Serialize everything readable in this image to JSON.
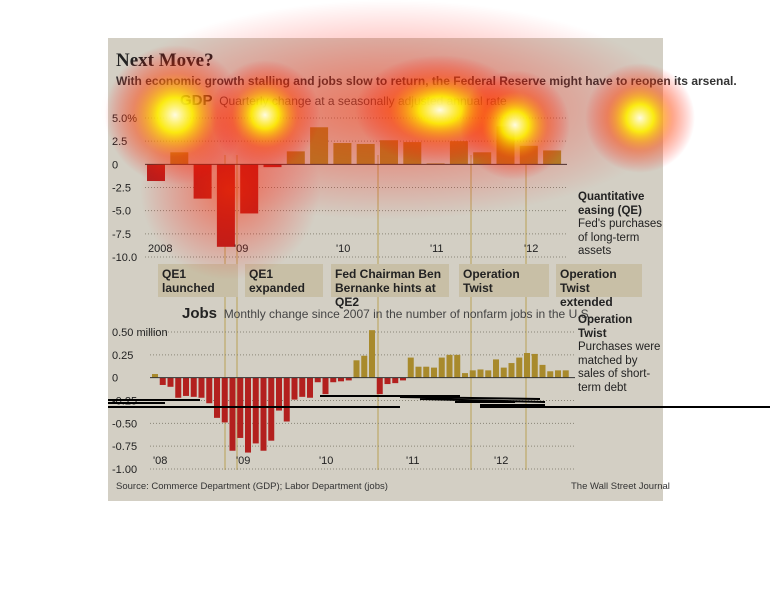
{
  "title": "Next Move?",
  "subtitle": "With economic growth stalling and jobs slow to return, the Federal Reserve might have to reopen its arsenal.",
  "source": "Source: Commerce Department (GDP); Labor Department (jobs)",
  "credit": "The Wall Street Journal",
  "annotations": {
    "qe_title": "Quantitative easing (QE)",
    "qe_text": "Fed's purchases of long-term assets",
    "twist_title": "Operation Twist",
    "twist_text": "Purchases were matched by sales of short-term debt"
  },
  "events": [
    "QE1 launched",
    "QE1 expanded",
    "Fed Chairman Ben Bernanke hints at QE2",
    "Operation Twist",
    "Operation Twist extended"
  ],
  "colors": {
    "negative": "#b3201e",
    "positive": "#a88a2c",
    "background": "#d3cfc4"
  },
  "chart_data": [
    {
      "type": "bar",
      "title": "GDP",
      "subtitle": "Quarterly change at a seasonally adjusted annual rate",
      "ylim": [
        -10,
        5
      ],
      "yticks": [
        "5.0%",
        "2.5",
        "0",
        "-2.5",
        "-5.0",
        "-7.5",
        "-10.0"
      ],
      "xticks": [
        "2008",
        "'09",
        "'10",
        "'11",
        "'12"
      ],
      "categories": [
        "2008Q1",
        "2008Q2",
        "2008Q3",
        "2008Q4",
        "2009Q1",
        "2009Q2",
        "2009Q3",
        "2009Q4",
        "2010Q1",
        "2010Q2",
        "2010Q3",
        "2010Q4",
        "2011Q1",
        "2011Q2",
        "2011Q3",
        "2011Q4",
        "2012Q1",
        "2012Q2"
      ],
      "values": [
        -1.8,
        1.3,
        -3.7,
        -8.9,
        -5.3,
        -0.3,
        1.4,
        4.0,
        2.3,
        2.2,
        2.6,
        2.4,
        0.1,
        2.5,
        1.3,
        4.1,
        2.0,
        1.5
      ]
    },
    {
      "type": "bar",
      "title": "Jobs",
      "subtitle": "Monthly change since 2007 in the number of nonfarm jobs in the U.S.",
      "ylim": [
        -1.0,
        0.5
      ],
      "yticks": [
        "0.50 million",
        "0.25",
        "0",
        "-0.25",
        "-0.50",
        "-0.75",
        "-1.00"
      ],
      "xticks": [
        "'08",
        "'09",
        "'10",
        "'11",
        "'12"
      ],
      "values": [
        0.04,
        -0.08,
        -0.1,
        -0.22,
        -0.2,
        -0.21,
        -0.22,
        -0.28,
        -0.44,
        -0.49,
        -0.8,
        -0.66,
        -0.82,
        -0.72,
        -0.8,
        -0.69,
        -0.36,
        -0.48,
        -0.24,
        -0.21,
        -0.22,
        -0.05,
        -0.18,
        -0.05,
        -0.04,
        -0.03,
        0.19,
        0.24,
        0.52,
        -0.18,
        -0.07,
        -0.06,
        -0.03,
        0.22,
        0.12,
        0.12,
        0.11,
        0.22,
        0.25,
        0.25,
        0.05,
        0.08,
        0.09,
        0.08,
        0.2,
        0.11,
        0.16,
        0.22,
        0.27,
        0.26,
        0.14,
        0.07,
        0.08,
        0.08
      ]
    }
  ]
}
